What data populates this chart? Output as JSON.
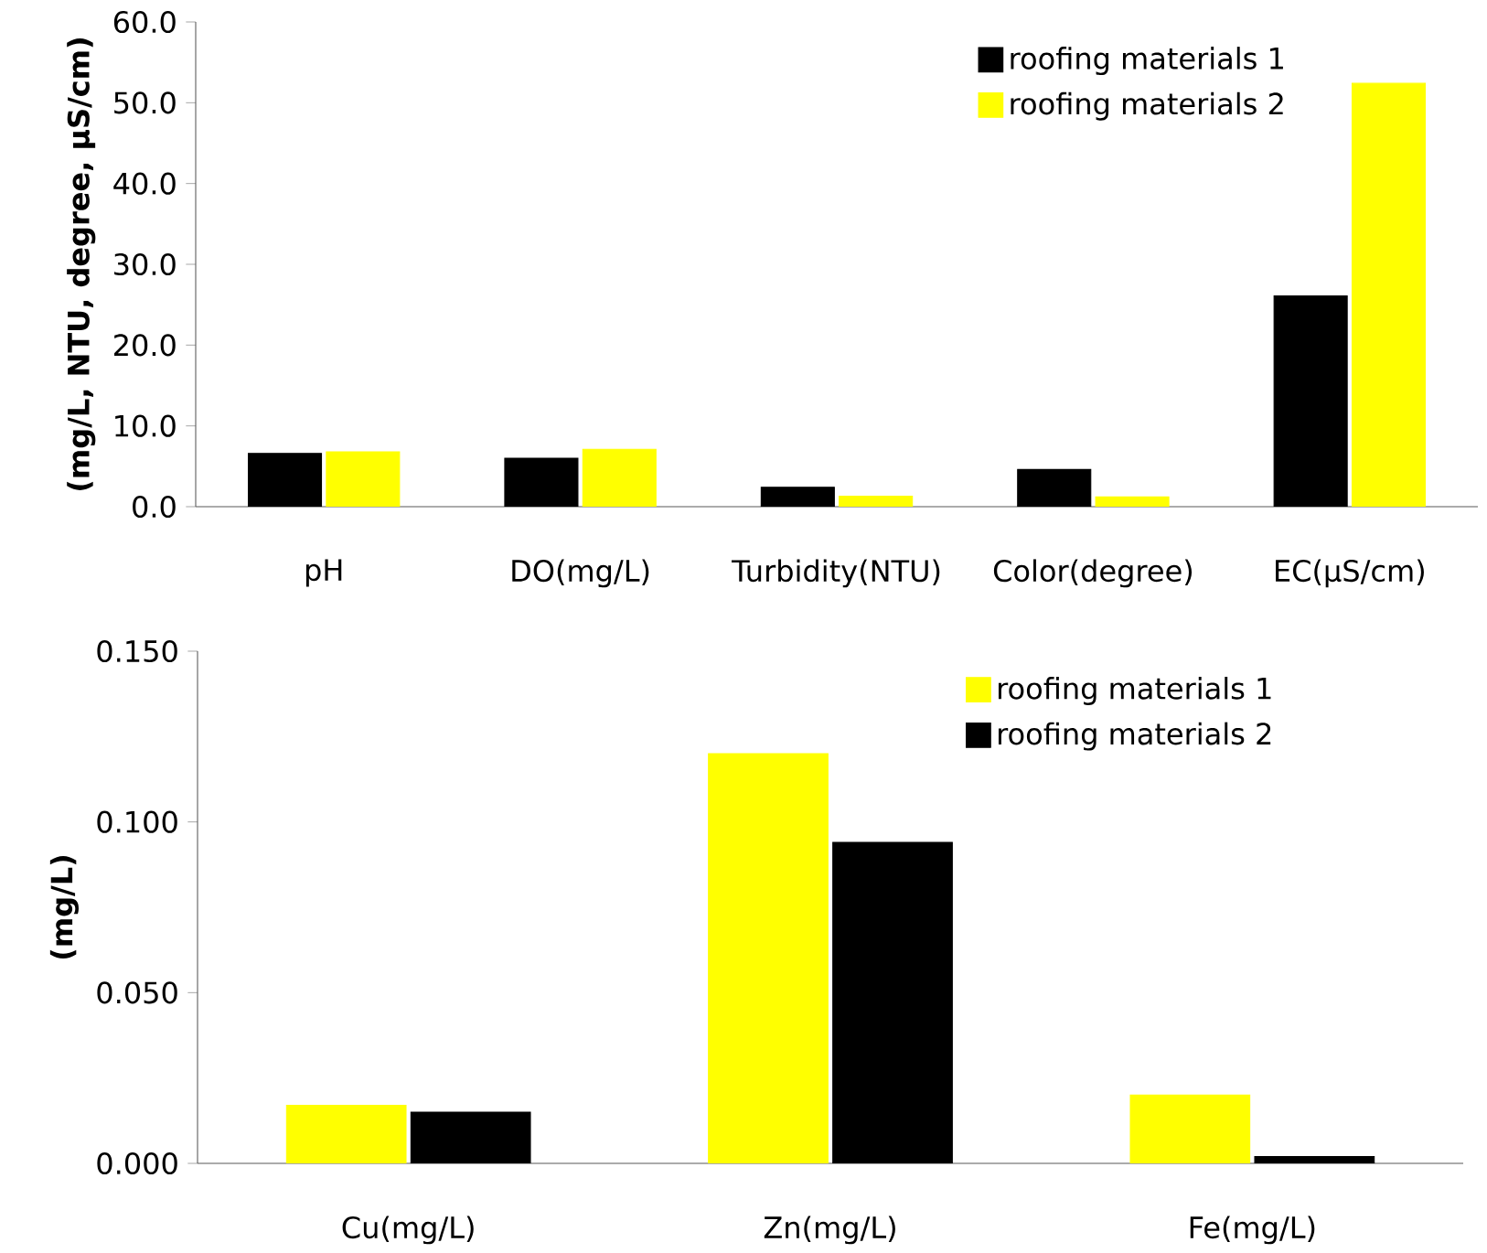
{
  "chart_data": [
    {
      "type": "bar",
      "ylabel": "(mg/L, NTU, degree, µS/cm)",
      "categories": [
        "pH",
        "DO(mg/L)",
        "Turbidity(NTU)",
        "Color(degree)",
        "EC(µS/cm)"
      ],
      "series": [
        {
          "name": "roofing materials 1",
          "color": "#000000",
          "values": [
            6.6,
            6.0,
            2.4,
            4.6,
            26.1
          ]
        },
        {
          "name": "roofing materials 2",
          "color": "#ffff00",
          "values": [
            6.8,
            7.1,
            1.3,
            1.2,
            52.4
          ]
        }
      ],
      "ylim": [
        0,
        60
      ],
      "yticks": [
        {
          "value": 0,
          "label": "0.0"
        },
        {
          "value": 10,
          "label": "10.0"
        },
        {
          "value": 20,
          "label": "20.0"
        },
        {
          "value": 30,
          "label": "30.0"
        },
        {
          "value": 40,
          "label": "40.0"
        },
        {
          "value": 50,
          "label": "50.0"
        },
        {
          "value": 60,
          "label": "60.0"
        }
      ],
      "grid": false,
      "legend": "top right"
    },
    {
      "type": "bar",
      "ylabel": "(mg/L)",
      "categories": [
        "Cu(mg/L)",
        "Zn(mg/L)",
        "Fe(mg/L)"
      ],
      "series": [
        {
          "name": "roofing materials 1",
          "color": "#ffff00",
          "values": [
            0.017,
            0.12,
            0.02
          ]
        },
        {
          "name": "roofing materials 2",
          "color": "#000000",
          "values": [
            0.015,
            0.094,
            0.002
          ]
        }
      ],
      "ylim": [
        0,
        0.15
      ],
      "yticks": [
        {
          "value": 0,
          "label": "0.000"
        },
        {
          "value": 0.05,
          "label": "0.050"
        },
        {
          "value": 0.1,
          "label": "0.100"
        },
        {
          "value": 0.15,
          "label": "0.150"
        }
      ],
      "grid": false,
      "legend": "top right"
    }
  ]
}
